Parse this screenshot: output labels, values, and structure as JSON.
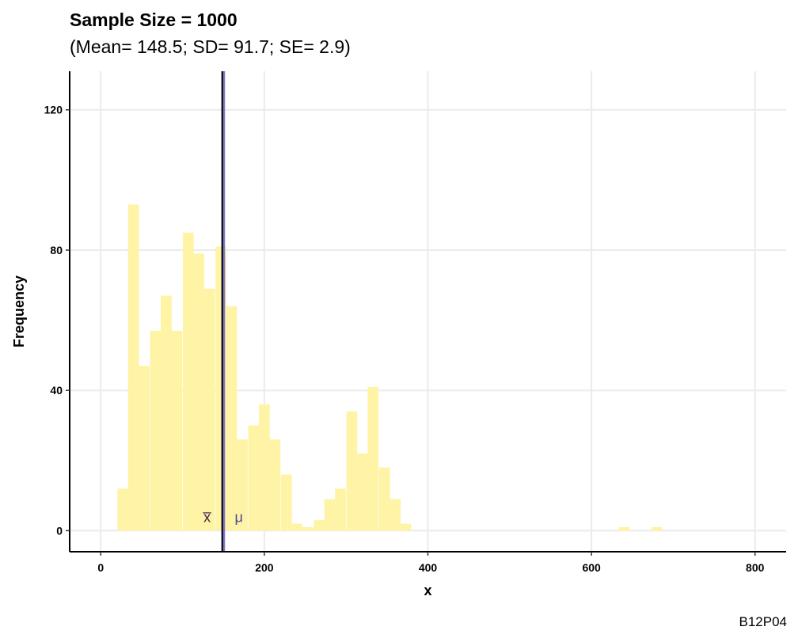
{
  "title": "Sample Size = 1000",
  "subtitle": "(Mean= 148.5; SD= 91.7; SE= 2.9)",
  "caption": "B12P04",
  "chart_data": {
    "type": "bar",
    "title": "Sample Size = 1000",
    "subtitle": "(Mean= 148.5; SD= 91.7; SE= 2.9)",
    "xlabel": "x",
    "ylabel": "Frequency",
    "xlim": [
      -38,
      838
    ],
    "ylim": [
      -6,
      131
    ],
    "x_ticks": [
      0,
      200,
      400,
      600,
      800
    ],
    "y_ticks": [
      0,
      40,
      80,
      120
    ],
    "grid": true,
    "bin_width": 13.3,
    "bars": [
      {
        "x": 27,
        "y": 12
      },
      {
        "x": 40,
        "y": 93
      },
      {
        "x": 53,
        "y": 47
      },
      {
        "x": 67,
        "y": 57
      },
      {
        "x": 80,
        "y": 67
      },
      {
        "x": 93,
        "y": 57
      },
      {
        "x": 107,
        "y": 85
      },
      {
        "x": 120,
        "y": 79
      },
      {
        "x": 133,
        "y": 69
      },
      {
        "x": 147,
        "y": 81
      },
      {
        "x": 160,
        "y": 64
      },
      {
        "x": 173,
        "y": 26
      },
      {
        "x": 187,
        "y": 30
      },
      {
        "x": 200,
        "y": 36
      },
      {
        "x": 213,
        "y": 26
      },
      {
        "x": 227,
        "y": 16
      },
      {
        "x": 240,
        "y": 2
      },
      {
        "x": 253,
        "y": 1
      },
      {
        "x": 267,
        "y": 3
      },
      {
        "x": 280,
        "y": 9
      },
      {
        "x": 293,
        "y": 12
      },
      {
        "x": 307,
        "y": 34
      },
      {
        "x": 320,
        "y": 22
      },
      {
        "x": 333,
        "y": 41
      },
      {
        "x": 347,
        "y": 18
      },
      {
        "x": 360,
        "y": 9
      },
      {
        "x": 373,
        "y": 2
      },
      {
        "x": 640,
        "y": 1
      },
      {
        "x": 680,
        "y": 1
      }
    ],
    "bar_color": "#FFF3A6",
    "sample_mean": 148.5,
    "population_mean": 150.5,
    "sample_mean_line_color": "#000000",
    "population_mean_line_color": "#7B73C9",
    "sample_mean_label": "x̅",
    "population_mean_label": "μ",
    "sample_mean_label_color": "#3A1D52",
    "population_mean_label_color": "#4A4A9A"
  }
}
